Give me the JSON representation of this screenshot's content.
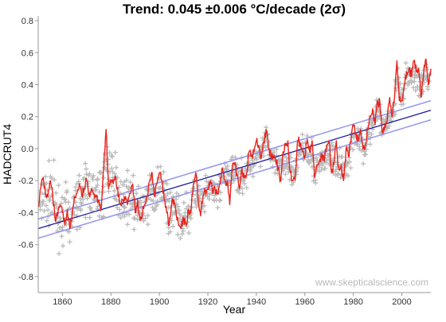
{
  "chart_data": {
    "type": "line",
    "title": "Trend: 0.045 ±0.006 °C/decade (2σ)",
    "xlabel": "Year",
    "ylabel": "HADCRUT4",
    "xlim": [
      1850,
      2012
    ],
    "ylim": [
      -0.9,
      0.83
    ],
    "x_ticks": [
      1860,
      1880,
      1900,
      1920,
      1940,
      1960,
      1980,
      2000
    ],
    "y_ticks": [
      -0.8,
      -0.6,
      -0.4,
      -0.2,
      0.0,
      0.2,
      0.4,
      0.6,
      0.8
    ],
    "x_tick_labels": [
      "1860",
      "1880",
      "1900",
      "1920",
      "1940",
      "1960",
      "1980",
      "2000"
    ],
    "y_tick_labels": [
      "-0.8",
      "-0.6",
      "-0.4",
      "-0.2",
      "0.0",
      "0.2",
      "0.4",
      "0.6",
      "0.8"
    ],
    "grid": false,
    "legend": "none",
    "watermark": "www.skepticalscience.com",
    "colors": {
      "monthly": "#bbbbbb",
      "smoothed": "#e8221a",
      "trend": "#1c1ca0",
      "uncertainty": "#9999ee"
    },
    "series": [
      {
        "kind": "monthly-scatter",
        "marker": "plus",
        "years": [
          1850,
          1852,
          1854,
          1856,
          1858,
          1860,
          1862,
          1864,
          1866,
          1868,
          1870,
          1872,
          1874,
          1876,
          1878,
          1880,
          1882,
          1884,
          1886,
          1888,
          1890,
          1892,
          1894,
          1896,
          1898,
          1900,
          1902,
          1904,
          1906,
          1908,
          1910,
          1912,
          1914,
          1916,
          1918,
          1920,
          1922,
          1924,
          1926,
          1928,
          1930,
          1932,
          1934,
          1936,
          1938,
          1940,
          1942,
          1944,
          1946,
          1948,
          1950,
          1952,
          1954,
          1956,
          1958,
          1960,
          1962,
          1964,
          1966,
          1968,
          1970,
          1972,
          1974,
          1976,
          1978,
          1980,
          1982,
          1984,
          1986,
          1988,
          1990,
          1992,
          1994,
          1996,
          1998,
          2000,
          2002,
          2004,
          2006,
          2008,
          2010,
          2012
        ],
        "center": [
          -0.35,
          -0.25,
          -0.3,
          -0.32,
          -0.42,
          -0.4,
          -0.45,
          -0.38,
          -0.3,
          -0.28,
          -0.25,
          -0.28,
          -0.3,
          -0.3,
          -0.05,
          -0.22,
          -0.2,
          -0.32,
          -0.3,
          -0.3,
          -0.38,
          -0.38,
          -0.4,
          -0.25,
          -0.32,
          -0.2,
          -0.28,
          -0.45,
          -0.35,
          -0.45,
          -0.42,
          -0.42,
          -0.25,
          -0.33,
          -0.35,
          -0.25,
          -0.27,
          -0.28,
          -0.18,
          -0.2,
          -0.14,
          -0.16,
          -0.18,
          -0.14,
          -0.1,
          0.0,
          -0.02,
          0.08,
          -0.08,
          -0.1,
          -0.15,
          -0.06,
          -0.12,
          -0.14,
          0.02,
          -0.03,
          -0.02,
          -0.15,
          -0.06,
          -0.08,
          -0.03,
          -0.08,
          -0.1,
          -0.13,
          -0.04,
          0.08,
          0.08,
          0.02,
          0.06,
          0.18,
          0.25,
          0.12,
          0.17,
          0.2,
          0.45,
          0.3,
          0.46,
          0.45,
          0.42,
          0.4,
          0.48,
          0.44
        ],
        "spread": [
          0.3,
          0.3,
          0.3,
          0.3,
          0.3,
          0.28,
          0.28,
          0.28,
          0.26,
          0.26,
          0.26,
          0.26,
          0.26,
          0.24,
          0.26,
          0.24,
          0.24,
          0.22,
          0.22,
          0.22,
          0.22,
          0.2,
          0.2,
          0.2,
          0.2,
          0.2,
          0.2,
          0.2,
          0.18,
          0.18,
          0.18,
          0.18,
          0.18,
          0.18,
          0.18,
          0.16,
          0.16,
          0.16,
          0.16,
          0.16,
          0.16,
          0.16,
          0.16,
          0.15,
          0.15,
          0.15,
          0.15,
          0.15,
          0.15,
          0.15,
          0.14,
          0.14,
          0.14,
          0.14,
          0.14,
          0.14,
          0.14,
          0.14,
          0.14,
          0.14,
          0.14,
          0.14,
          0.14,
          0.14,
          0.14,
          0.14,
          0.14,
          0.14,
          0.14,
          0.14,
          0.14,
          0.14,
          0.14,
          0.14,
          0.14,
          0.14,
          0.14,
          0.14,
          0.14,
          0.14,
          0.14,
          0.14
        ]
      },
      {
        "kind": "smoothed",
        "x": [
          1850,
          1851,
          1852,
          1853,
          1854,
          1855,
          1856,
          1857,
          1858,
          1859,
          1860,
          1861,
          1862,
          1863,
          1864,
          1865,
          1866,
          1867,
          1868,
          1869,
          1870,
          1871,
          1872,
          1873,
          1874,
          1875,
          1876,
          1877,
          1878,
          1879,
          1880,
          1881,
          1882,
          1883,
          1884,
          1885,
          1886,
          1887,
          1888,
          1889,
          1890,
          1891,
          1892,
          1893,
          1894,
          1895,
          1896,
          1897,
          1898,
          1899,
          1900,
          1901,
          1902,
          1903,
          1904,
          1905,
          1906,
          1907,
          1908,
          1909,
          1910,
          1911,
          1912,
          1913,
          1914,
          1915,
          1916,
          1917,
          1918,
          1919,
          1920,
          1921,
          1922,
          1923,
          1924,
          1925,
          1926,
          1927,
          1928,
          1929,
          1930,
          1931,
          1932,
          1933,
          1934,
          1935,
          1936,
          1937,
          1938,
          1939,
          1940,
          1941,
          1942,
          1943,
          1944,
          1945,
          1946,
          1947,
          1948,
          1949,
          1950,
          1951,
          1952,
          1953,
          1954,
          1955,
          1956,
          1957,
          1958,
          1959,
          1960,
          1961,
          1962,
          1963,
          1964,
          1965,
          1966,
          1967,
          1968,
          1969,
          1970,
          1971,
          1972,
          1973,
          1974,
          1975,
          1976,
          1977,
          1978,
          1979,
          1980,
          1981,
          1982,
          1983,
          1984,
          1985,
          1986,
          1987,
          1988,
          1989,
          1990,
          1991,
          1992,
          1993,
          1994,
          1995,
          1996,
          1997,
          1998,
          1999,
          2000,
          2001,
          2002,
          2003,
          2004,
          2005,
          2006,
          2007,
          2008,
          2009,
          2010,
          2011,
          2012
        ],
        "y": [
          -0.36,
          -0.25,
          -0.18,
          -0.28,
          -0.3,
          -0.2,
          -0.3,
          -0.45,
          -0.42,
          -0.35,
          -0.4,
          -0.48,
          -0.38,
          -0.5,
          -0.42,
          -0.3,
          -0.28,
          -0.22,
          -0.3,
          -0.25,
          -0.2,
          -0.28,
          -0.25,
          -0.28,
          -0.3,
          -0.32,
          -0.38,
          -0.12,
          0.12,
          -0.25,
          -0.2,
          -0.22,
          -0.18,
          -0.3,
          -0.35,
          -0.32,
          -0.3,
          -0.33,
          -0.28,
          -0.22,
          -0.4,
          -0.32,
          -0.45,
          -0.4,
          -0.35,
          -0.3,
          -0.2,
          -0.15,
          -0.3,
          -0.22,
          -0.15,
          -0.2,
          -0.32,
          -0.4,
          -0.48,
          -0.35,
          -0.32,
          -0.42,
          -0.48,
          -0.5,
          -0.44,
          -0.48,
          -0.38,
          -0.4,
          -0.22,
          -0.15,
          -0.32,
          -0.42,
          -0.3,
          -0.27,
          -0.25,
          -0.2,
          -0.28,
          -0.26,
          -0.28,
          -0.22,
          -0.12,
          -0.2,
          -0.2,
          -0.35,
          -0.12,
          -0.1,
          -0.16,
          -0.25,
          -0.12,
          -0.18,
          -0.15,
          -0.02,
          -0.05,
          -0.02,
          0.05,
          0.02,
          -0.06,
          0.04,
          0.12,
          0.0,
          -0.05,
          -0.05,
          -0.08,
          -0.12,
          -0.2,
          -0.02,
          0.02,
          0.05,
          -0.15,
          -0.2,
          -0.2,
          0.05,
          0.04,
          -0.02,
          -0.05,
          0.06,
          -0.02,
          0.05,
          -0.18,
          -0.1,
          -0.08,
          -0.04,
          -0.08,
          0.02,
          0.05,
          -0.15,
          -0.1,
          0.05,
          -0.12,
          -0.1,
          -0.2,
          0.0,
          -0.05,
          0.04,
          0.15,
          0.1,
          0.05,
          0.12,
          0.0,
          0.02,
          0.12,
          0.2,
          0.25,
          0.15,
          0.3,
          0.28,
          0.1,
          0.15,
          0.18,
          0.32,
          0.2,
          0.32,
          0.55,
          0.3,
          0.3,
          0.4,
          0.48,
          0.5,
          0.45,
          0.55,
          0.48,
          0.5,
          0.32,
          0.48,
          0.56,
          0.4,
          0.5
        ]
      },
      {
        "kind": "trend",
        "name": "",
        "x": [
          1850,
          2012
        ],
        "y": [
          -0.5,
          0.24
        ],
        "upper": [
          -0.44,
          0.3
        ],
        "lower": [
          -0.56,
          0.18
        ]
      }
    ]
  }
}
